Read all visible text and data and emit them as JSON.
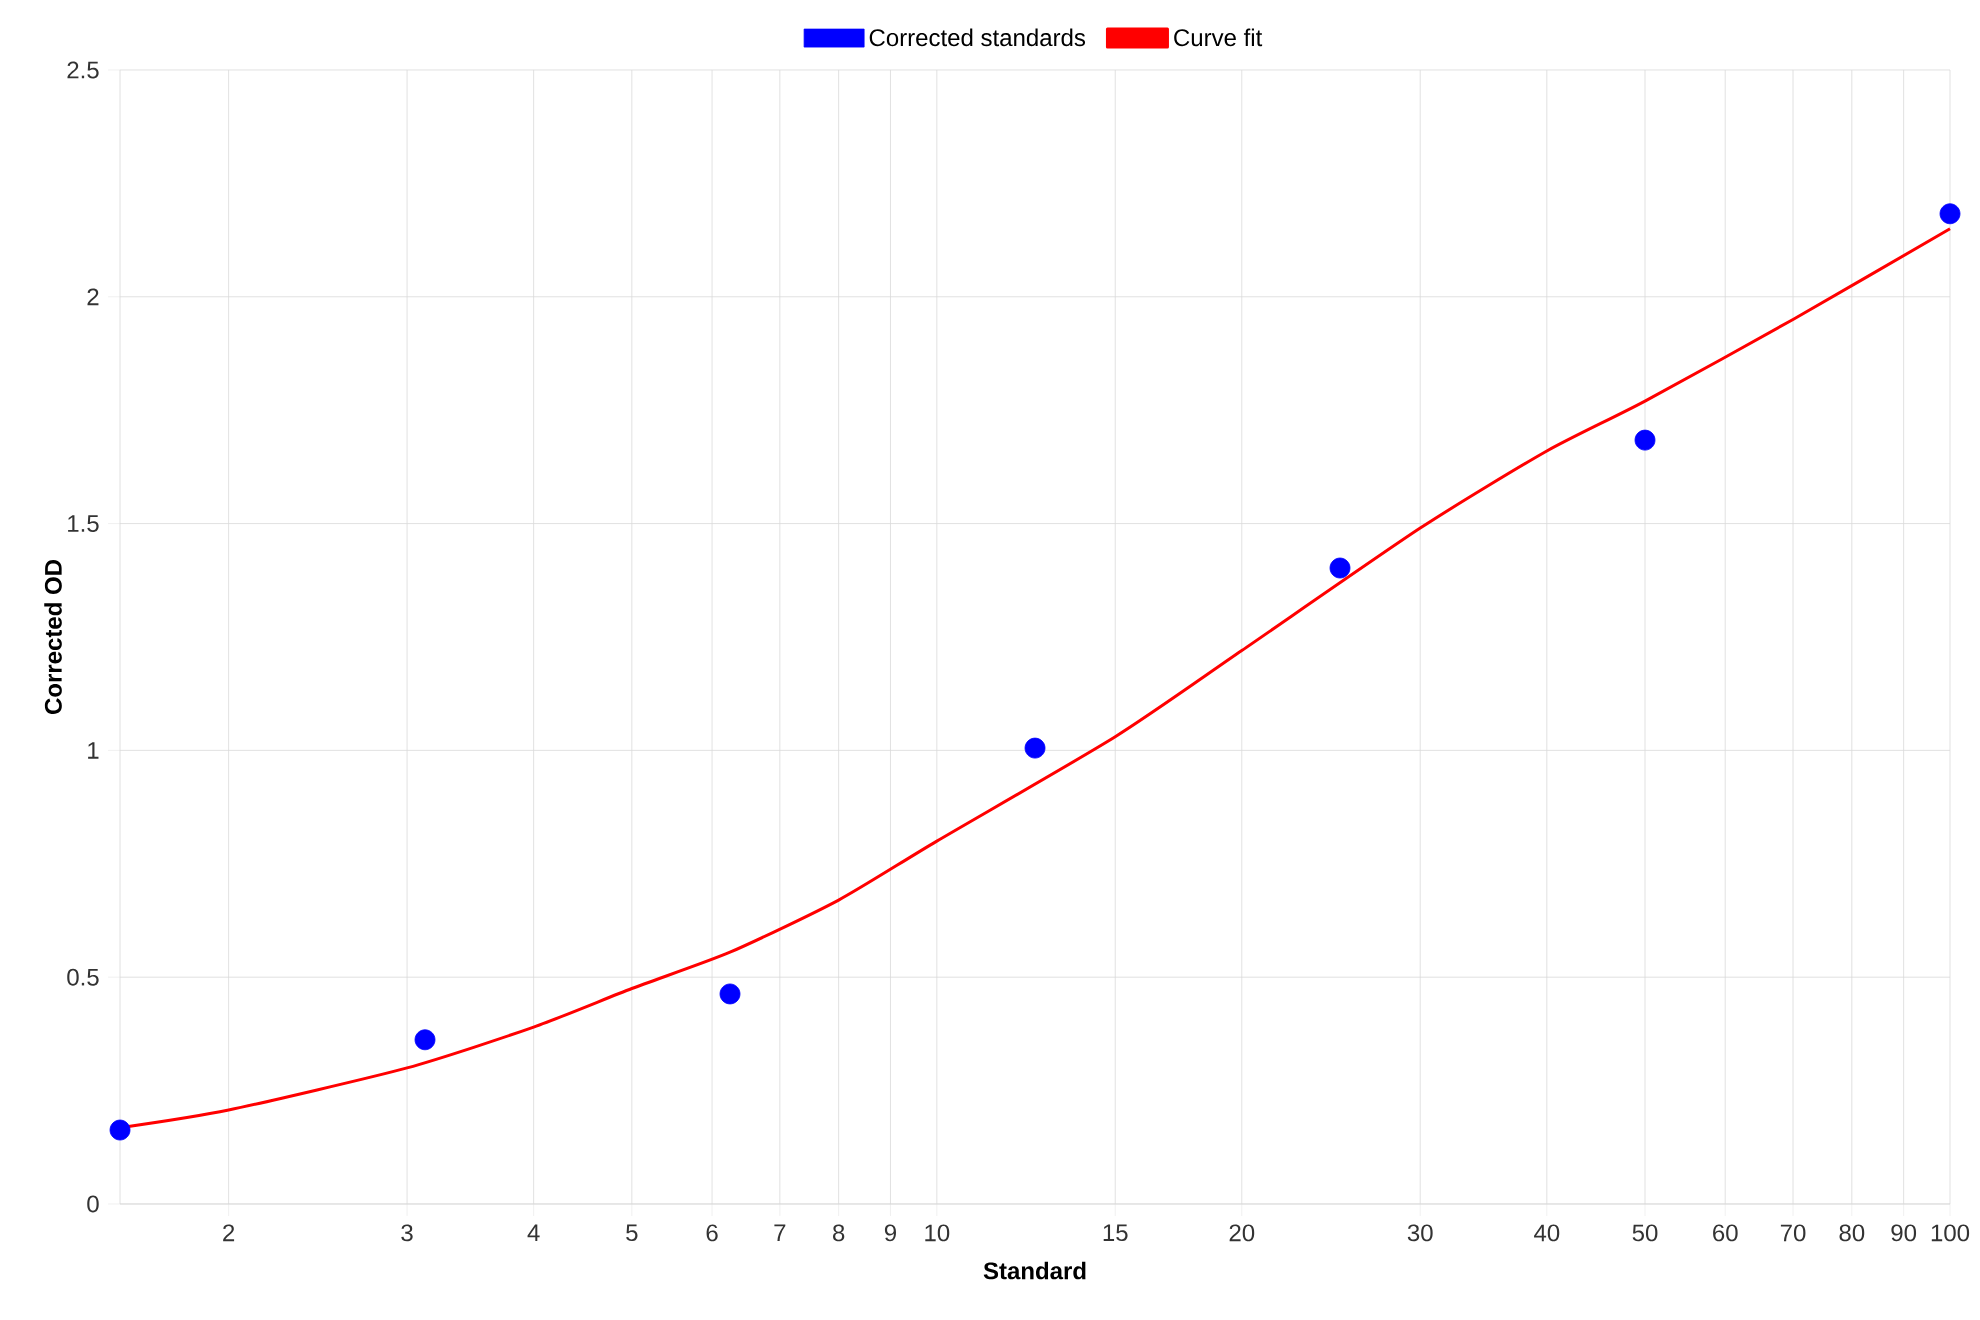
{
  "chart_data": {
    "type": "scatter",
    "xlabel": "Standard",
    "ylabel": "Corrected OD",
    "log": "x",
    "grid": true,
    "legend": "top",
    "xlim": [
      1.5625,
      100
    ],
    "ylim": [
      0,
      2.5
    ],
    "xticks": [
      2,
      3,
      4,
      5,
      6,
      7,
      8,
      9,
      10,
      15,
      20,
      30,
      40,
      50,
      60,
      70,
      80,
      90,
      100
    ],
    "yticks": [
      0,
      0.5,
      1,
      1.5,
      2,
      2.5
    ],
    "series": [
      {
        "name": "Corrected standards",
        "marker": "circle",
        "color": "#0000ff",
        "x": [
          1.5625,
          3.125,
          6.25,
          12.5,
          25,
          50,
          100
        ],
        "values": [
          0.163,
          0.362,
          0.463,
          1.005,
          1.402,
          1.684,
          2.183
        ]
      },
      {
        "name": "Curve fit",
        "type": "line",
        "marker": "none",
        "line_style": "solid",
        "color": "#ff0000",
        "x": [
          1.5625,
          2,
          3,
          4,
          5,
          6.25,
          8,
          10,
          15,
          20,
          30,
          40,
          50,
          70,
          100
        ],
        "values": [
          0.168,
          0.207,
          0.3,
          0.39,
          0.475,
          0.555,
          0.67,
          0.8,
          1.03,
          1.22,
          1.49,
          1.66,
          1.77,
          1.95,
          2.15
        ]
      }
    ]
  }
}
